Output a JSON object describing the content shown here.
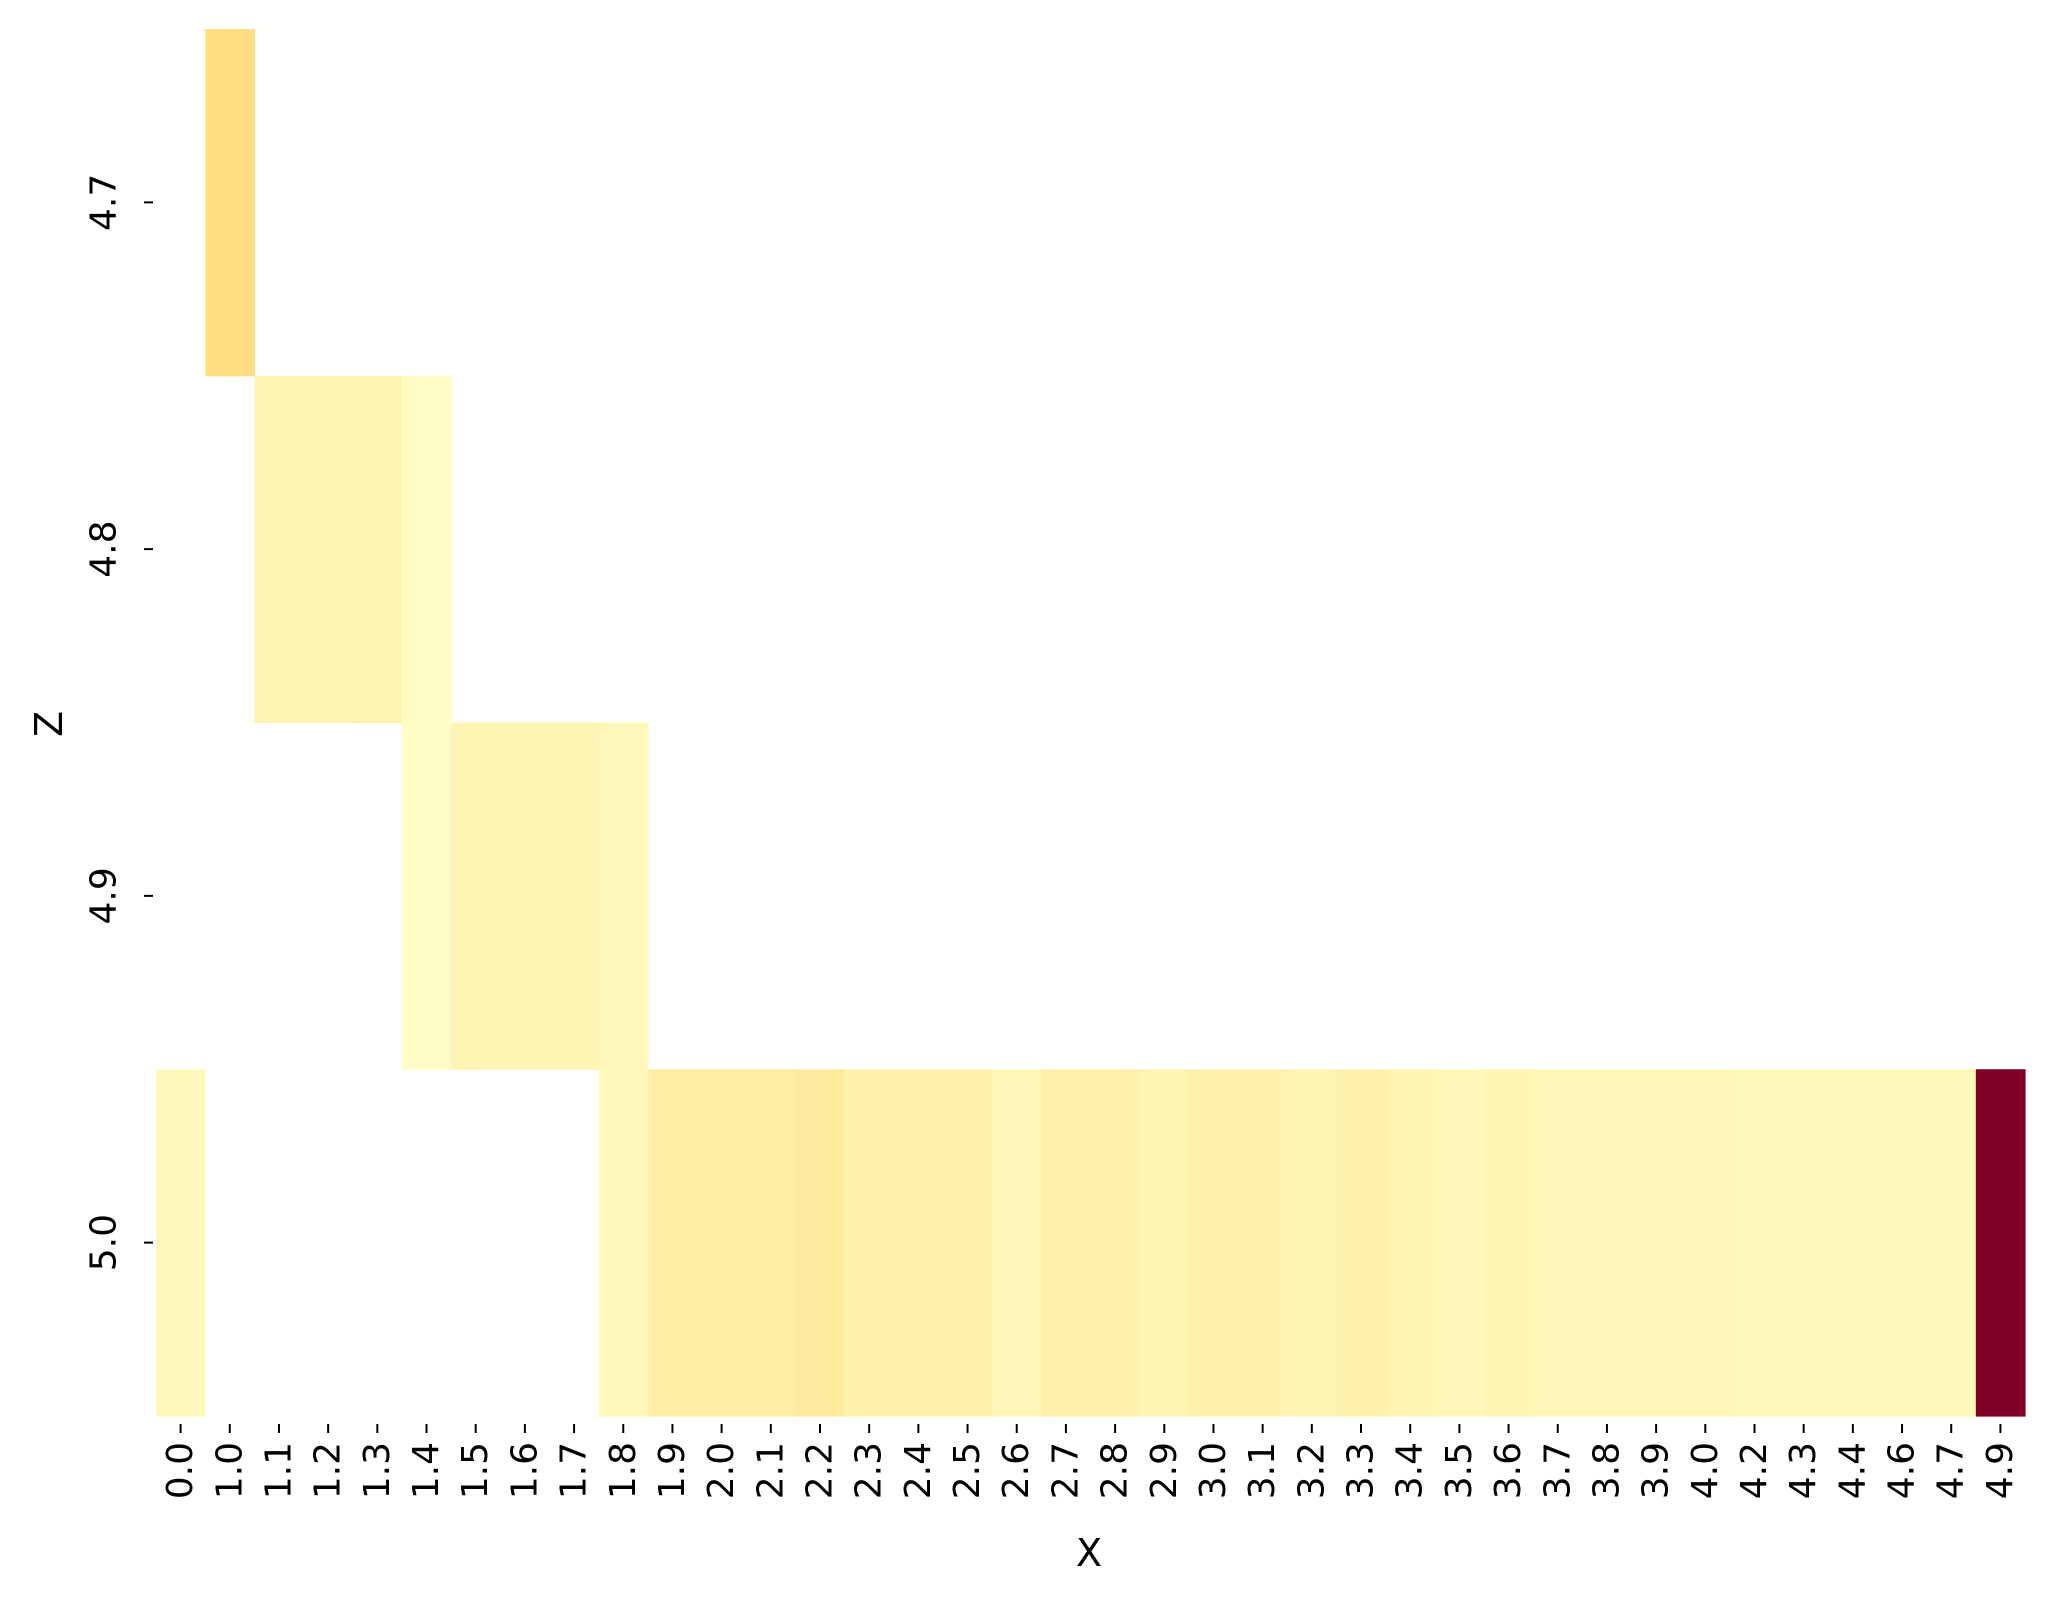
{
  "chart_data": {
    "type": "heatmap",
    "xlabel": "X",
    "ylabel": "Z",
    "x_categories": [
      "0.0",
      "1.0",
      "1.1",
      "1.2",
      "1.3",
      "1.4",
      "1.5",
      "1.6",
      "1.7",
      "1.8",
      "1.9",
      "2.0",
      "2.1",
      "2.2",
      "2.3",
      "2.4",
      "2.5",
      "2.6",
      "2.7",
      "2.8",
      "2.9",
      "3.0",
      "3.1",
      "3.2",
      "3.3",
      "3.4",
      "3.5",
      "3.6",
      "3.7",
      "3.8",
      "3.9",
      "4.0",
      "4.2",
      "4.3",
      "4.4",
      "4.6",
      "4.7",
      "4.9"
    ],
    "y_categories": [
      "4.7",
      "4.8",
      "4.9",
      "5.0"
    ],
    "colormap": "YlOrRd",
    "colorbar": false,
    "grid": false,
    "note_values": "relative intensity 0-1, null = empty cell",
    "values": [
      [
        null,
        0.22,
        null,
        null,
        null,
        null,
        null,
        null,
        null,
        null,
        null,
        null,
        null,
        null,
        null,
        null,
        null,
        null,
        null,
        null,
        null,
        null,
        null,
        null,
        null,
        null,
        null,
        null,
        null,
        null,
        null,
        null,
        null,
        null,
        null,
        null,
        null,
        null
      ],
      [
        null,
        null,
        0.07,
        0.07,
        0.08,
        0.02,
        null,
        null,
        null,
        null,
        null,
        null,
        null,
        null,
        null,
        null,
        null,
        null,
        null,
        null,
        null,
        null,
        null,
        null,
        null,
        null,
        null,
        null,
        null,
        null,
        null,
        null,
        null,
        null,
        null,
        null,
        null,
        null
      ],
      [
        null,
        null,
        null,
        null,
        null,
        0.02,
        0.07,
        0.07,
        0.07,
        0.05,
        null,
        null,
        null,
        null,
        null,
        null,
        null,
        null,
        null,
        null,
        null,
        null,
        null,
        null,
        null,
        null,
        null,
        null,
        null,
        null,
        null,
        null,
        null,
        null,
        null,
        null,
        null,
        null
      ],
      [
        0.05,
        null,
        null,
        null,
        null,
        null,
        null,
        null,
        null,
        0.05,
        0.11,
        0.11,
        0.11,
        0.14,
        0.09,
        0.09,
        0.09,
        0.06,
        0.1,
        0.1,
        0.07,
        0.09,
        0.09,
        0.07,
        0.09,
        0.07,
        0.06,
        0.07,
        0.06,
        0.06,
        0.06,
        0.06,
        0.05,
        0.05,
        0.05,
        0.05,
        0.05,
        1.0
      ]
    ],
    "colors": {
      "max": "#800026",
      "low": "#ffffcc",
      "mid": "#ffdf85"
    }
  }
}
